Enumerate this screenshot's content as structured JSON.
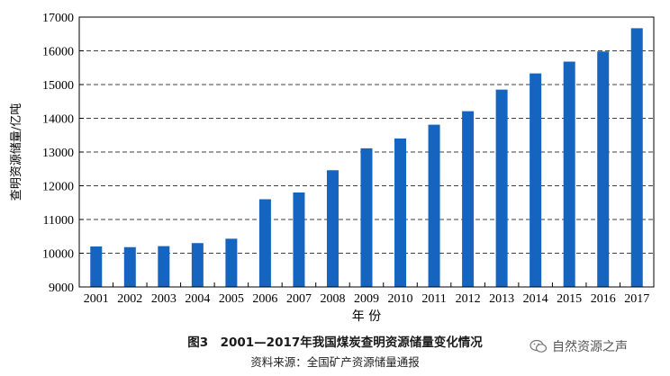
{
  "chart_data": {
    "type": "bar",
    "ylabel": "查明资源储量/亿吨",
    "xlabel": "年 份",
    "ylim": [
      9000,
      17000
    ],
    "yticks": [
      9000,
      10000,
      11000,
      12000,
      13000,
      14000,
      15000,
      16000,
      17000
    ],
    "grid": true,
    "grid_style": "dashed-horizontal",
    "bar_color": "#1565c0",
    "categories": [
      "2001",
      "2002",
      "2003",
      "2004",
      "2005",
      "2006",
      "2007",
      "2008",
      "2009",
      "2010",
      "2011",
      "2012",
      "2013",
      "2014",
      "2015",
      "2016",
      "2017"
    ],
    "values": [
      10200,
      10180,
      10210,
      10300,
      10430,
      11600,
      11800,
      12460,
      13110,
      13400,
      13810,
      14210,
      14850,
      15330,
      15680,
      15980,
      16670
    ]
  },
  "caption": {
    "title": "图3　2001—2017年我国煤炭查明资源储量变化情况",
    "source": "资料来源：全国矿产资源储量通报"
  },
  "watermark": {
    "text": "自然资源之声",
    "icon": "wechat-icon"
  }
}
